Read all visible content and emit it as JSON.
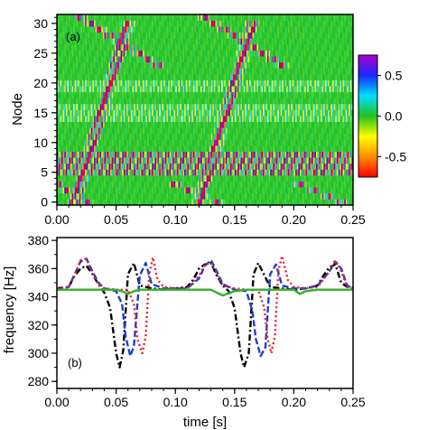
{
  "chart_data": [
    {
      "type": "heatmap",
      "panel_label": "(a)",
      "title": "",
      "xlabel": "",
      "ylabel": "Node",
      "xlim": [
        0,
        0.25
      ],
      "ylim": [
        -0.5,
        31.5
      ],
      "x_ticks": [
        "0.00",
        "0.05",
        "0.10",
        "0.15",
        "0.20",
        "0.25"
      ],
      "y_ticks": [
        "0",
        "5",
        "10",
        "15",
        "20",
        "25",
        "30"
      ],
      "nodes": 32,
      "colorbar": {
        "range": [
          -0.75,
          0.75
        ],
        "ticks": [
          "0.5",
          "0.0",
          "-0.5"
        ],
        "colors": [
          "#ff0000",
          "#ff8c00",
          "#ffff00",
          "#22c022",
          "#00e0ff",
          "#1a28ff",
          "#b000d0"
        ]
      },
      "wave_bands": [
        {
          "from_node": 0,
          "to_node": 30,
          "t_start": 0.015,
          "t_end": 0.06
        },
        {
          "from_node": 0,
          "to_node": 30,
          "t_start": 0.12,
          "t_end": 0.165
        },
        {
          "from_node": 31,
          "to_node": 23,
          "t_start": 0.02,
          "t_end": 0.085
        },
        {
          "from_node": 31,
          "to_node": 23,
          "t_start": 0.125,
          "t_end": 0.19
        },
        {
          "from_node": 3,
          "to_node": 0,
          "t_start": 0.0,
          "t_end": 0.025
        },
        {
          "from_node": 3,
          "to_node": 0,
          "t_start": 0.1,
          "t_end": 0.135
        },
        {
          "from_node": 3,
          "to_node": 0,
          "t_start": 0.205,
          "t_end": 0.24
        }
      ],
      "strong_rows": [
        5,
        6,
        7,
        8
      ],
      "moderate_rows": [
        14,
        15,
        16,
        19,
        20
      ]
    },
    {
      "type": "line",
      "panel_label": "(b)",
      "title": "",
      "xlabel": "time [s]",
      "ylabel": "frequency [Hz]",
      "xlim": [
        0,
        0.25
      ],
      "ylim": [
        275,
        382
      ],
      "x_ticks": [
        "0.00",
        "0.05",
        "0.10",
        "0.15",
        "0.20",
        "0.25"
      ],
      "y_ticks": [
        "280",
        "300",
        "320",
        "340",
        "360",
        "380"
      ],
      "series": [
        {
          "color": "#000000",
          "dash": "7,3,2,3",
          "x": [
            0.0,
            0.01,
            0.015,
            0.02,
            0.025,
            0.03,
            0.035,
            0.04,
            0.045,
            0.05,
            0.053,
            0.056,
            0.06,
            0.065,
            0.07,
            0.08,
            0.09,
            0.1,
            0.11,
            0.115,
            0.12,
            0.125,
            0.13,
            0.135,
            0.14,
            0.145,
            0.15,
            0.155,
            0.158,
            0.162,
            0.166,
            0.17,
            0.18,
            0.19,
            0.2,
            0.21,
            0.22,
            0.225,
            0.23,
            0.235,
            0.24,
            0.245,
            0.25
          ],
          "y": [
            346,
            347,
            355,
            360,
            362,
            356,
            349,
            343,
            332,
            300,
            290,
            302,
            356,
            364,
            348,
            346,
            345,
            346,
            347,
            352,
            360,
            363,
            364,
            355,
            348,
            344,
            332,
            300,
            290,
            300,
            356,
            364,
            347,
            346,
            345,
            346,
            348,
            355,
            361,
            363,
            350,
            347,
            346
          ]
        },
        {
          "color": "#1f3fd0",
          "dash": "7,3",
          "x": [
            0.0,
            0.01,
            0.015,
            0.02,
            0.025,
            0.03,
            0.035,
            0.04,
            0.045,
            0.05,
            0.055,
            0.058,
            0.062,
            0.065,
            0.07,
            0.075,
            0.08,
            0.09,
            0.1,
            0.11,
            0.12,
            0.125,
            0.13,
            0.135,
            0.14,
            0.15,
            0.16,
            0.165,
            0.168,
            0.172,
            0.176,
            0.18,
            0.185,
            0.19,
            0.2,
            0.21,
            0.22,
            0.23,
            0.235,
            0.24,
            0.245,
            0.25
          ],
          "y": [
            345,
            347,
            356,
            365,
            367,
            358,
            350,
            346,
            345,
            344,
            335,
            312,
            298,
            305,
            355,
            364,
            349,
            346,
            346,
            346,
            353,
            362,
            366,
            358,
            349,
            345,
            344,
            330,
            310,
            298,
            304,
            356,
            363,
            348,
            346,
            346,
            348,
            358,
            365,
            360,
            348,
            346
          ]
        },
        {
          "color": "#e8202a",
          "dash": "2,3",
          "x": [
            0.0,
            0.01,
            0.015,
            0.02,
            0.025,
            0.03,
            0.035,
            0.04,
            0.05,
            0.06,
            0.065,
            0.068,
            0.072,
            0.075,
            0.078,
            0.081,
            0.085,
            0.09,
            0.1,
            0.11,
            0.12,
            0.125,
            0.13,
            0.135,
            0.14,
            0.15,
            0.16,
            0.17,
            0.175,
            0.178,
            0.181,
            0.184,
            0.187,
            0.19,
            0.195,
            0.2,
            0.21,
            0.22,
            0.23,
            0.235,
            0.24,
            0.245,
            0.25
          ],
          "y": [
            346,
            347,
            355,
            366,
            367,
            356,
            349,
            346,
            345,
            345,
            335,
            310,
            300,
            312,
            356,
            368,
            352,
            347,
            346,
            346,
            355,
            363,
            364,
            356,
            348,
            346,
            345,
            345,
            332,
            310,
            300,
            312,
            358,
            369,
            352,
            347,
            346,
            347,
            358,
            366,
            358,
            347,
            346
          ]
        },
        {
          "color": "#33b028",
          "dash": "",
          "x": [
            0.0,
            0.02,
            0.04,
            0.05,
            0.055,
            0.06,
            0.065,
            0.07,
            0.09,
            0.11,
            0.13,
            0.135,
            0.14,
            0.15,
            0.16,
            0.17,
            0.18,
            0.19,
            0.2,
            0.205,
            0.21,
            0.22,
            0.25
          ],
          "y": [
            345,
            345,
            345,
            345,
            344,
            342,
            344,
            345,
            345,
            345,
            345,
            343,
            341,
            344,
            345,
            345,
            345,
            345,
            345,
            342,
            344,
            345,
            345
          ]
        }
      ]
    }
  ]
}
